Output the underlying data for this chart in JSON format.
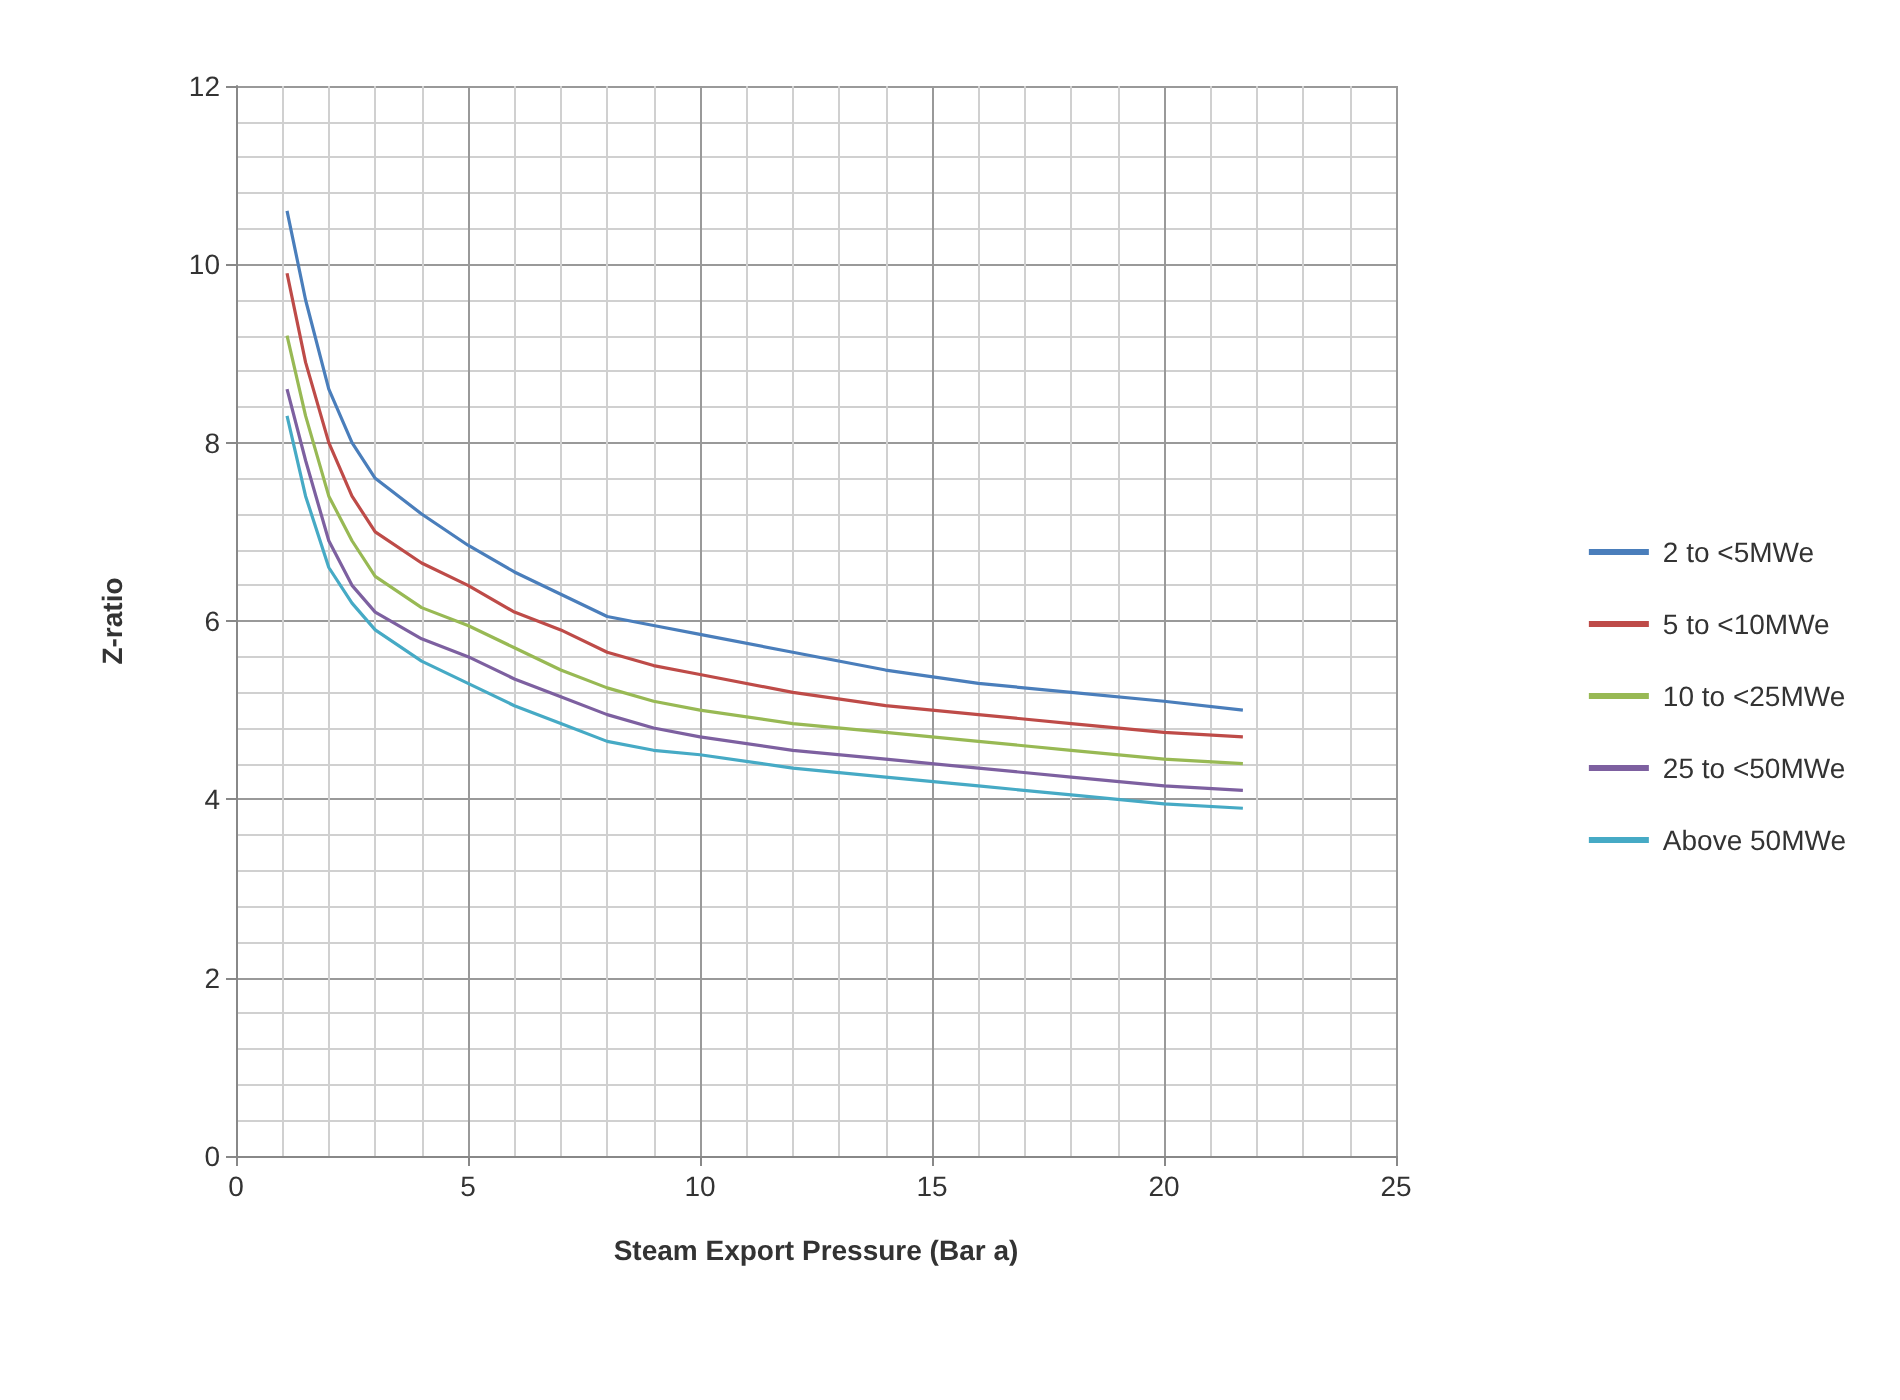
{
  "chart_data": {
    "type": "line",
    "xlabel": "Steam Export Pressure (Bar a)",
    "ylabel": "Z-ratio",
    "x": [
      1.1,
      1.5,
      2,
      2.5,
      3,
      4,
      5,
      6,
      7,
      8,
      9,
      10,
      12,
      14,
      16,
      18,
      20,
      21.7
    ],
    "series": [
      {
        "name": "2 to <5MWe",
        "color": "#4a7ebb",
        "values": [
          10.6,
          9.6,
          8.6,
          8.0,
          7.6,
          7.2,
          6.85,
          6.55,
          6.3,
          6.05,
          5.95,
          5.85,
          5.65,
          5.45,
          5.3,
          5.2,
          5.1,
          5.0
        ]
      },
      {
        "name": "5 to <10MWe",
        "color": "#be4b48",
        "values": [
          9.9,
          8.9,
          8.0,
          7.4,
          7.0,
          6.65,
          6.4,
          6.1,
          5.9,
          5.65,
          5.5,
          5.4,
          5.2,
          5.05,
          4.95,
          4.85,
          4.75,
          4.7
        ]
      },
      {
        "name": "10 to <25MWe",
        "color": "#98b954",
        "values": [
          9.2,
          8.3,
          7.4,
          6.9,
          6.5,
          6.15,
          5.95,
          5.7,
          5.45,
          5.25,
          5.1,
          5.0,
          4.85,
          4.75,
          4.65,
          4.55,
          4.45,
          4.4
        ]
      },
      {
        "name": "25 to <50MWe",
        "color": "#7d60a0",
        "values": [
          8.6,
          7.8,
          6.9,
          6.4,
          6.1,
          5.8,
          5.6,
          5.35,
          5.15,
          4.95,
          4.8,
          4.7,
          4.55,
          4.45,
          4.35,
          4.25,
          4.15,
          4.1
        ]
      },
      {
        "name": "Above 50MWe",
        "color": "#46aac5",
        "values": [
          8.3,
          7.4,
          6.6,
          6.2,
          5.9,
          5.55,
          5.3,
          5.05,
          4.85,
          4.65,
          4.55,
          4.5,
          4.35,
          4.25,
          4.15,
          4.05,
          3.95,
          3.9
        ]
      }
    ],
    "xlim": [
      0,
      25
    ],
    "xticks": [
      0,
      5,
      10,
      15,
      20,
      25
    ],
    "ylim": [
      0,
      12
    ],
    "yticks": [
      0,
      2,
      4,
      6,
      8,
      10,
      12
    ],
    "grid": true,
    "legend": "right",
    "marker": "none",
    "line_style": "solid"
  }
}
